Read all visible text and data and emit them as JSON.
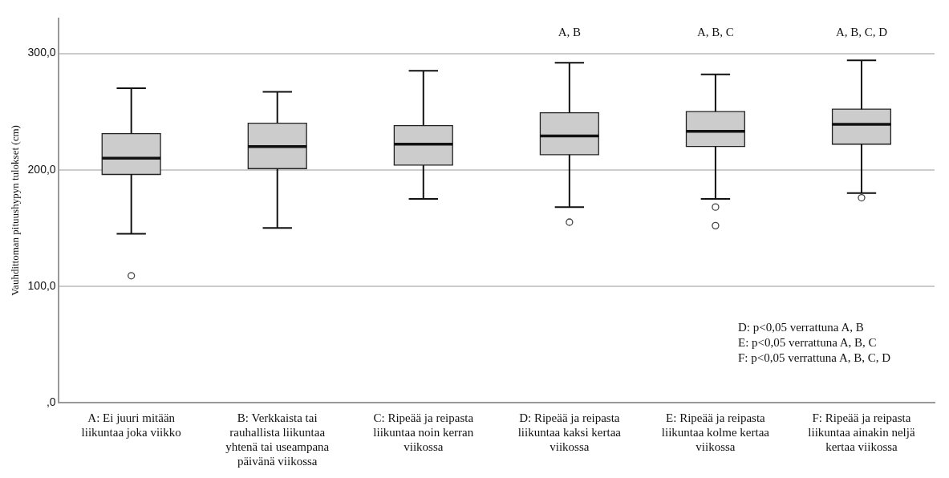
{
  "chart_data": {
    "type": "box",
    "ylabel": "Vauhdittoman pituushypyn tulokset (cm)",
    "categories": [
      "A: Ei juuri mitään liikuntaa joka viikko",
      "B: Verkkaista tai rauhallista liikuntaa yhtenä tai useampana päivänä viikossa",
      "C: Ripeää ja reipasta liikuntaa noin kerran viikossa",
      "D: Ripeää ja reipasta liikuntaa kaksi kertaa viikossa",
      "E: Ripeää ja reipasta liikuntaa kolme kertaa viikossa",
      "F: Ripeää ja reipasta liikuntaa ainakin neljä kertaa viikossa"
    ],
    "series": [
      {
        "color": "#cccccc",
        "boxes": [
          {
            "low": 145,
            "q1": 196,
            "median": 210,
            "q3": 231,
            "high": 270,
            "outliers": [
              109
            ]
          },
          {
            "low": 150,
            "q1": 201,
            "median": 220,
            "q3": 240,
            "high": 267
          },
          {
            "low": 175,
            "q1": 204,
            "median": 222,
            "q3": 238,
            "high": 285
          },
          {
            "low": 168,
            "q1": 213,
            "median": 229,
            "q3": 249,
            "high": 292,
            "outliers": [
              155
            ]
          },
          {
            "low": 175,
            "q1": 220,
            "median": 233,
            "q3": 250,
            "high": 282,
            "outliers": [
              168,
              152
            ]
          },
          {
            "low": 180,
            "q1": 222,
            "median": 239,
            "q3": 252,
            "high": 294,
            "outliers": [
              176
            ]
          }
        ]
      }
    ],
    "ylim": [
      0,
      330
    ],
    "yticks": [
      {
        "value": 0,
        "label": ",0"
      },
      {
        "value": 100,
        "label": "100,0"
      },
      {
        "value": 200,
        "label": "200,0"
      },
      {
        "value": 300,
        "label": "300,0"
      }
    ],
    "grid": "y",
    "annotations": [
      "A, B",
      "A, B, C",
      "A, B, C, D",
      "D: p<0,05 verrattuna A, B",
      "E: p<0,05 verrattuna A, B, C",
      "F: p<0,05 verrattuna A, B, C, D"
    ]
  }
}
